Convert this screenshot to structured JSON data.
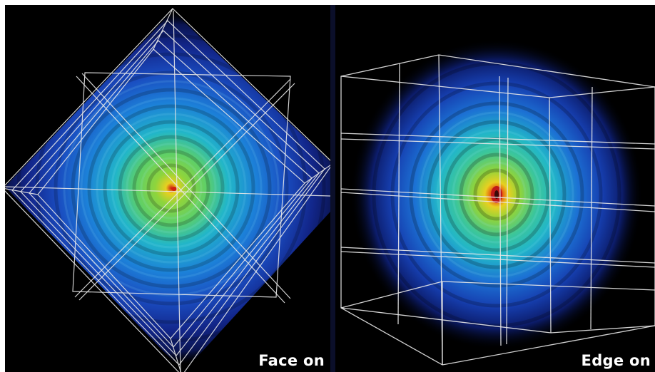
{
  "panels": {
    "left": {
      "caption": "Face on"
    },
    "right": {
      "caption": "Edge on"
    }
  },
  "colors": {
    "background": "#000000",
    "outer_glow": "#0a1a6e",
    "mid_blue": "#1c5fd0",
    "cyan": "#22b6c8",
    "green": "#7fd34a",
    "core_yellow": "#e8d020",
    "core_red": "#d02010",
    "wireframe": "#e8e8e8",
    "divider": "#0b0f2a"
  }
}
